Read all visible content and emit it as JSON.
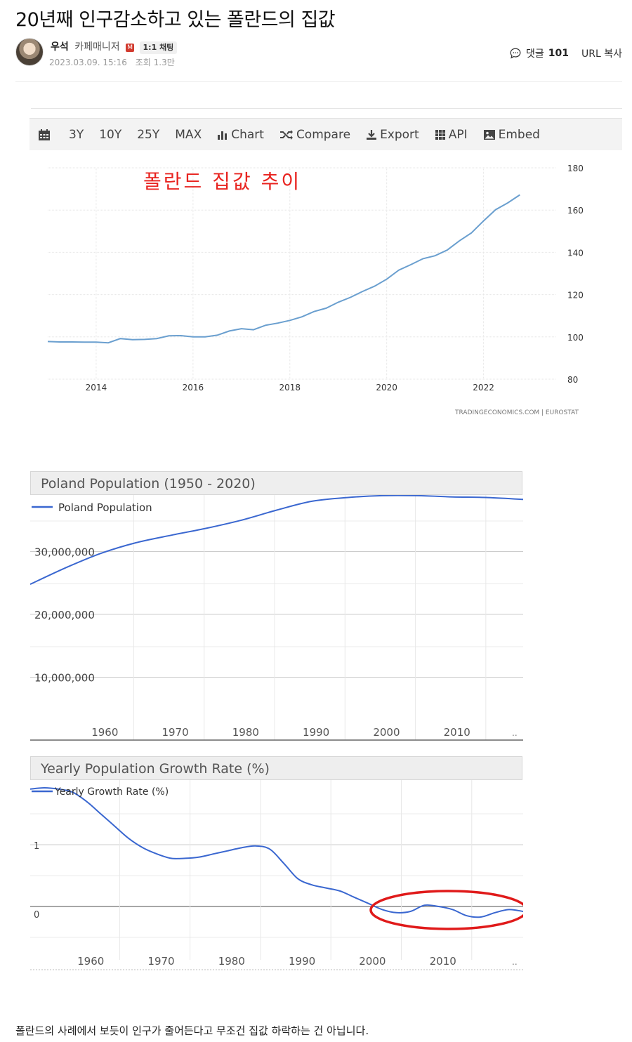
{
  "post": {
    "title": "20년째 인구감소하고 있는 폴란드의 집값",
    "author": {
      "name": "우석",
      "role": "카페매니저",
      "badge": "M",
      "chat_label": "1:1 채팅"
    },
    "date": "2023.03.09. 15:16",
    "views": "조회 1.3만",
    "comments_label": "댓글",
    "comments_count": "101",
    "url_copy_label": "URL 복사",
    "body_text": "폴란드의 사례에서 보듯이 인구가 줄어든다고 무조건 집값 하락하는 건 아닙니다."
  },
  "tradingeconomics": {
    "toolbar": [
      "3Y",
      "10Y",
      "25Y",
      "MAX",
      "Chart",
      "Compare",
      "Export",
      "API",
      "Embed"
    ],
    "annotation": "폴란드 집값 추이",
    "source": "TRADINGECONOMICS.COM  |  EUROSTAT",
    "line_color": "#6a9fcf",
    "annotation_color": "#e8231f"
  },
  "population": {
    "header": "Poland Population (1950 - 2020)",
    "legend": "Poland Population",
    "line_color": "#3a67d0"
  },
  "growth": {
    "header": "Yearly Population Growth Rate (%)",
    "legend": "Yearly Growth Rate (%)",
    "line_color": "#3a67d0",
    "highlight_color": "#e01a1a"
  },
  "chart_data": [
    {
      "type": "line",
      "title": "",
      "xlabel": "",
      "ylabel": "",
      "x_ticks": [
        "2014",
        "2016",
        "2018",
        "2020",
        "2022"
      ],
      "y_ticks": [
        "80",
        "100",
        "120",
        "140",
        "160",
        "180"
      ],
      "ylim": [
        80,
        180
      ],
      "xlim": [
        2013.0,
        2023.5
      ],
      "grid": true,
      "x": [
        2013.0,
        2013.25,
        2013.5,
        2013.75,
        2014.0,
        2014.25,
        2014.5,
        2014.75,
        2015.0,
        2015.25,
        2015.5,
        2015.75,
        2016.0,
        2016.25,
        2016.5,
        2016.75,
        2017.0,
        2017.25,
        2017.5,
        2017.75,
        2018.0,
        2018.25,
        2018.5,
        2018.75,
        2019.0,
        2019.25,
        2019.5,
        2019.75,
        2020.0,
        2020.25,
        2020.5,
        2020.75,
        2021.0,
        2021.25,
        2021.5,
        2021.75,
        2022.0,
        2022.25,
        2022.5,
        2022.75
      ],
      "values": [
        97.8,
        97.6,
        97.6,
        97.5,
        97.5,
        97.2,
        99.2,
        98.7,
        98.8,
        99.2,
        100.5,
        100.6,
        100.0,
        100.0,
        100.8,
        102.8,
        103.9,
        103.4,
        105.5,
        106.5,
        107.8,
        109.5,
        112.0,
        113.6,
        116.4,
        118.7,
        121.5,
        124.0,
        127.3,
        131.6,
        134.2,
        137.0,
        138.4,
        141.1,
        145.4,
        149.2,
        154.9,
        160.2,
        163.4,
        167.2
      ]
    },
    {
      "type": "line",
      "title": "Poland Population (1950 - 2020)",
      "xlabel": "",
      "ylabel": "",
      "x_ticks": [
        "1960",
        "1970",
        "1980",
        "1990",
        "2000",
        "2010",
        ".."
      ],
      "y_ticks": [
        "10,000,000",
        "20,000,000",
        "30,000,000"
      ],
      "xlim": [
        1950,
        2020
      ],
      "ylim": [
        0,
        39000000
      ],
      "grid": true,
      "series": [
        {
          "name": "Poland Population",
          "x": [
            1950,
            1955,
            1960,
            1965,
            1970,
            1975,
            1980,
            1985,
            1990,
            1995,
            2000,
            2005,
            2010,
            2015,
            2020
          ],
          "values": [
            24800000,
            27400000,
            29700000,
            31400000,
            32600000,
            33700000,
            35000000,
            36600000,
            38000000,
            38600000,
            38900000,
            38900000,
            38700000,
            38600000,
            38300000
          ]
        }
      ]
    },
    {
      "type": "line",
      "title": "Yearly Population Growth Rate (%)",
      "xlabel": "",
      "ylabel": "",
      "x_ticks": [
        "1960",
        "1970",
        "1980",
        "1990",
        "2000",
        "2010",
        ".."
      ],
      "y_ticks": [
        "0",
        "1"
      ],
      "xlim": [
        1952,
        2022
      ],
      "ylim": [
        -0.45,
        1.9
      ],
      "grid": true,
      "series": [
        {
          "name": "Yearly Growth Rate (%)",
          "x": [
            1952,
            1954,
            1956,
            1958,
            1960,
            1962,
            1964,
            1966,
            1968,
            1970,
            1972,
            1974,
            1976,
            1978,
            1980,
            1982,
            1984,
            1986,
            1988,
            1990,
            1992,
            1994,
            1996,
            1998,
            2000,
            2002,
            2004,
            2006,
            2008,
            2010,
            2012,
            2014,
            2016,
            2018,
            2020,
            2022
          ],
          "values": [
            1.9,
            1.92,
            1.9,
            1.85,
            1.7,
            1.5,
            1.3,
            1.1,
            0.95,
            0.85,
            0.78,
            0.78,
            0.8,
            0.85,
            0.9,
            0.95,
            0.98,
            0.93,
            0.7,
            0.45,
            0.35,
            0.3,
            0.25,
            0.15,
            0.05,
            -0.05,
            -0.1,
            -0.08,
            0.02,
            0.0,
            -0.05,
            -0.15,
            -0.17,
            -0.1,
            -0.05,
            -0.08
          ]
        }
      ]
    }
  ]
}
